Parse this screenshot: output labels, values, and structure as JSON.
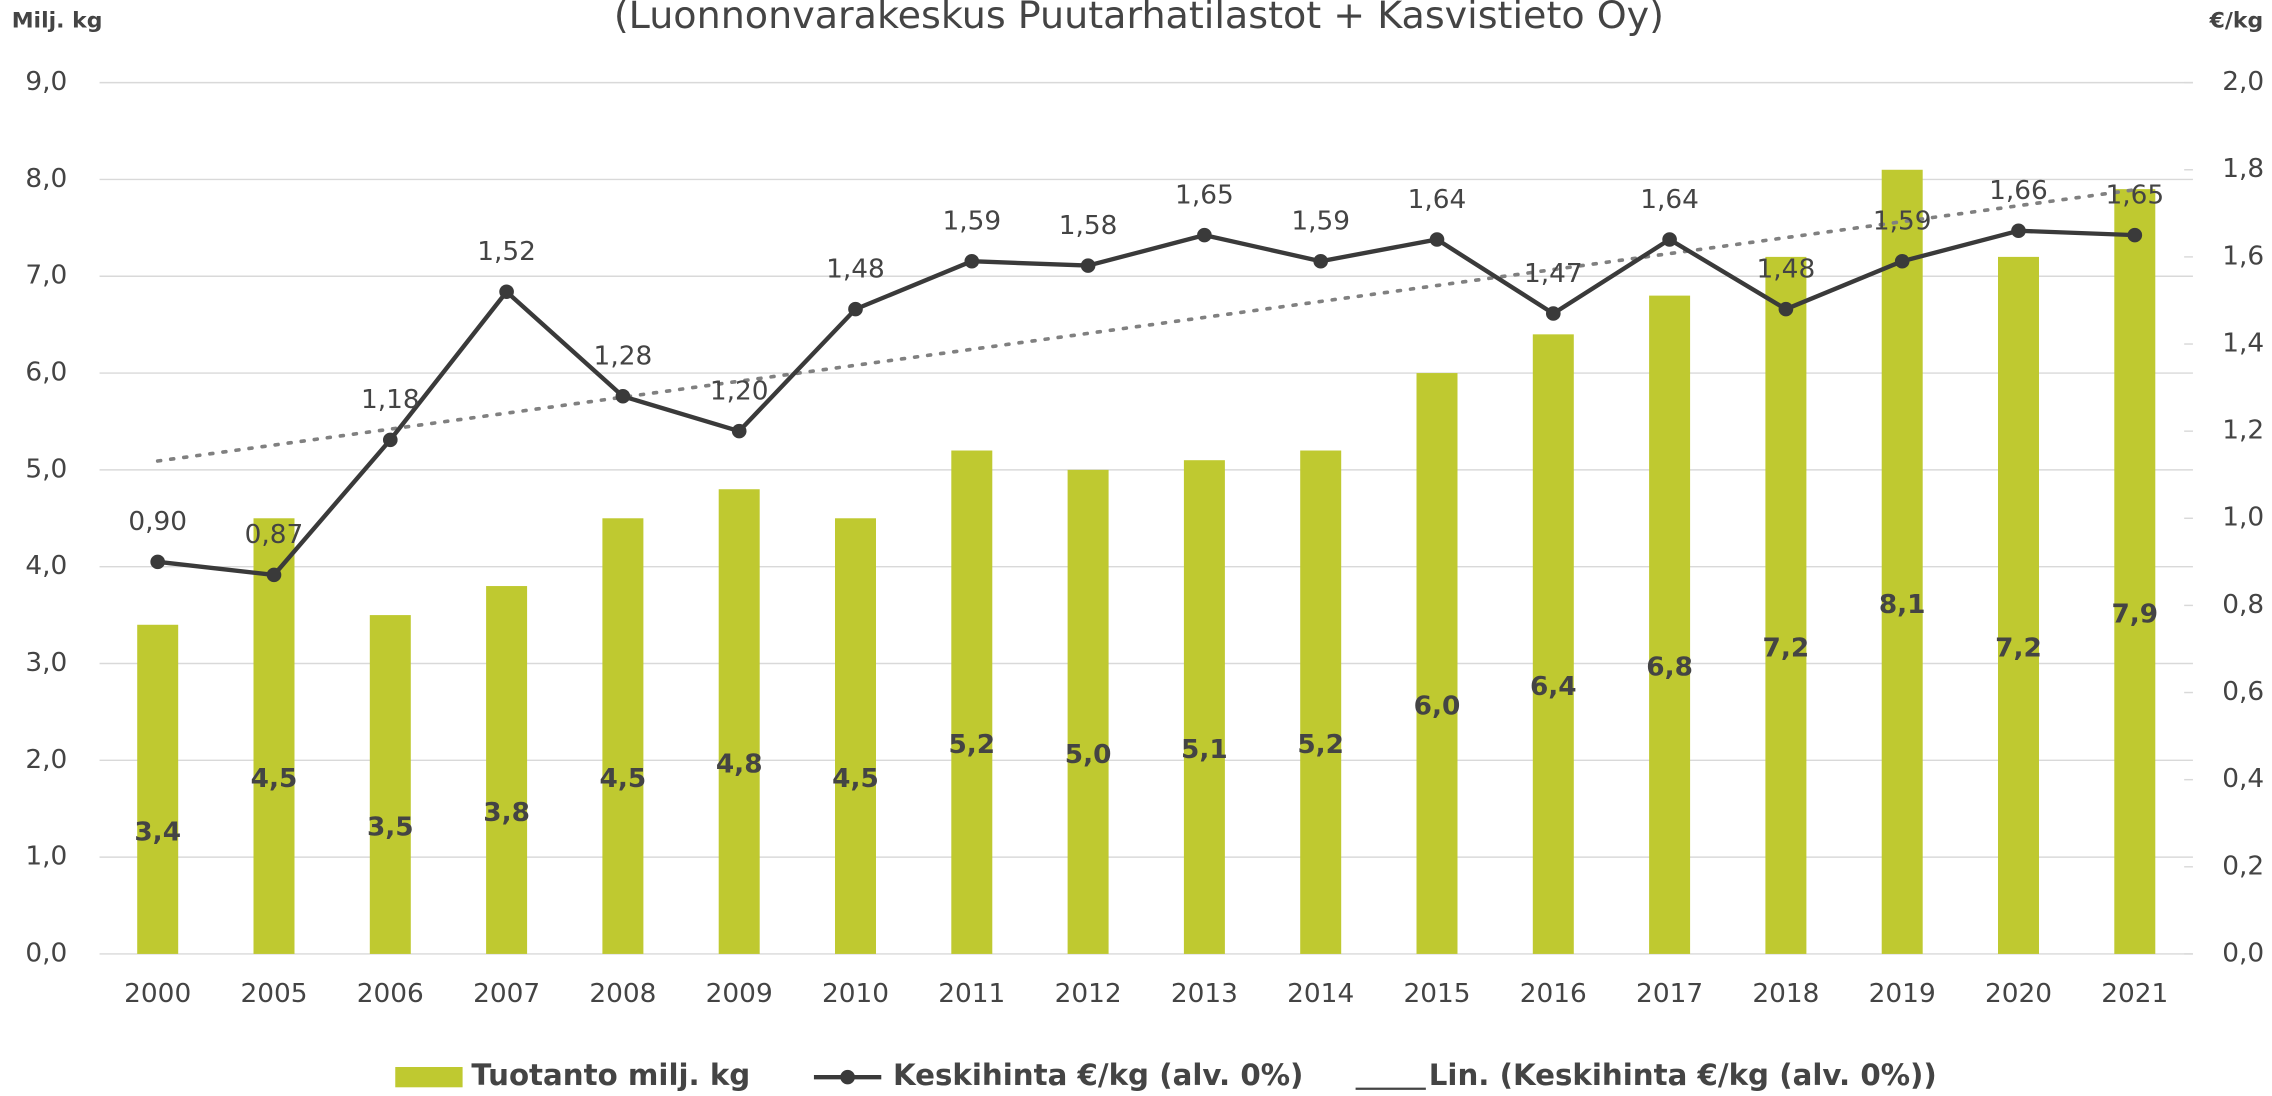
{
  "chart_data": {
    "type": "bar-line",
    "title": "(Luonnonvarakeskus Puutarhatilastot + Kasvistieto Oy)",
    "y_label": "Milj. kg",
    "y2_label": "€/kg",
    "categories": [
      "2000",
      "2005",
      "2006",
      "2007",
      "2008",
      "2009",
      "2010",
      "2011",
      "2012",
      "2013",
      "2014",
      "2015",
      "2016",
      "2017",
      "2018",
      "2019",
      "2020",
      "2021"
    ],
    "series": [
      {
        "name": "Tuotanto milj. kg",
        "type": "bar",
        "color": "#bfc930",
        "values": [
          3.4,
          4.5,
          3.5,
          3.8,
          4.5,
          4.8,
          4.5,
          5.2,
          5.0,
          5.1,
          5.2,
          6.0,
          6.4,
          6.8,
          7.2,
          8.1,
          7.2,
          7.9
        ],
        "value_labels": [
          "3,4",
          "4,5",
          "3,5",
          "3,8",
          "4,5",
          "4,8",
          "4,5",
          "5,2",
          "5,0",
          "5,1",
          "5,2",
          "6,0",
          "6,4",
          "6,8",
          "7,2",
          "8,1",
          "7,2",
          "7,9"
        ]
      },
      {
        "name": "Keskihinta €/kg (alv. 0%)",
        "type": "line",
        "axis": "y2",
        "color": "#3a3a3a",
        "values": [
          0.9,
          0.87,
          1.18,
          1.52,
          1.28,
          1.2,
          1.48,
          1.59,
          1.58,
          1.65,
          1.59,
          1.64,
          1.47,
          1.64,
          1.48,
          1.59,
          1.66,
          1.65
        ],
        "value_labels": [
          "0,90",
          "0,87",
          "1,18",
          "1,52",
          "1,28",
          "1,20",
          "1,48",
          "1,59",
          "1,58",
          "1,65",
          "1,59",
          "1,64",
          "1,47",
          "1,64",
          "1,48",
          "1,59",
          "1,66",
          "1,65"
        ]
      }
    ],
    "trendline": {
      "name": "Lin. (Keskihinta €/kg (alv. 0%))",
      "color": "#808080"
    },
    "ylim": [
      0,
      9
    ],
    "yticks": [
      {
        "value": 0,
        "label": "0,0"
      },
      {
        "value": 1,
        "label": "1,0"
      },
      {
        "value": 2,
        "label": "2,0"
      },
      {
        "value": 3,
        "label": "3,0"
      },
      {
        "value": 4,
        "label": "4,0"
      },
      {
        "value": 5,
        "label": "5,0"
      },
      {
        "value": 6,
        "label": "6,0"
      },
      {
        "value": 7,
        "label": "7,0"
      },
      {
        "value": 8,
        "label": "8,0"
      },
      {
        "value": 9,
        "label": "9,0"
      }
    ],
    "y2lim": [
      0,
      2
    ],
    "y2ticks": [
      {
        "value": 0,
        "label": "0,0"
      },
      {
        "value": 0.2,
        "label": "0,2"
      },
      {
        "value": 0.4,
        "label": "0,4"
      },
      {
        "value": 0.6,
        "label": "0,6"
      },
      {
        "value": 0.8,
        "label": "0,8"
      },
      {
        "value": 1.0,
        "label": "1,0"
      },
      {
        "value": 1.2,
        "label": "1,2"
      },
      {
        "value": 1.4,
        "label": "1,4"
      },
      {
        "value": 1.6,
        "label": "1,6"
      },
      {
        "value": 1.8,
        "label": "1,8"
      },
      {
        "value": 2.0,
        "label": "2,0"
      }
    ],
    "grid": true,
    "legend": "bottom"
  }
}
